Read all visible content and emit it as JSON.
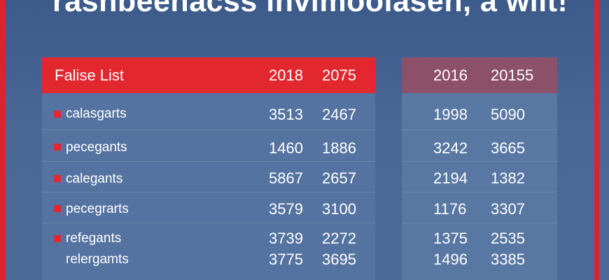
{
  "title": "rashbeenacss invimoolasen, a wiit!",
  "colors": {
    "accent": "#e2272e",
    "background": "#4a6796",
    "right_header": "#8c5068"
  },
  "table_left": {
    "header": {
      "label": "Falise List",
      "col1": "2018",
      "col2": "2075"
    },
    "rows": [
      {
        "label": "calasgarts",
        "col1": "3513",
        "col2": "2467"
      },
      {
        "label": "pecegants",
        "col1": "1460",
        "col2": "1886"
      },
      {
        "label": "calegants",
        "col1": "5867",
        "col2": "2657"
      },
      {
        "label": "pecegrarts",
        "col1": "3579",
        "col2": "3100"
      },
      {
        "label": "refegants",
        "col1": "3739",
        "col2": "2272"
      },
      {
        "label": "relergamts",
        "col1": "3775",
        "col2": "3695"
      }
    ]
  },
  "table_right": {
    "header": {
      "col1": "2016",
      "col2": "20155"
    },
    "rows": [
      {
        "col1": "1998",
        "col2": "5090"
      },
      {
        "col1": "3242",
        "col2": "3665"
      },
      {
        "col1": "2194",
        "col2": "1382"
      },
      {
        "col1": "1176",
        "col2": "3307"
      },
      {
        "col1": "1375",
        "col2": "2535"
      },
      {
        "col1": "1496",
        "col2": "3385"
      }
    ]
  }
}
